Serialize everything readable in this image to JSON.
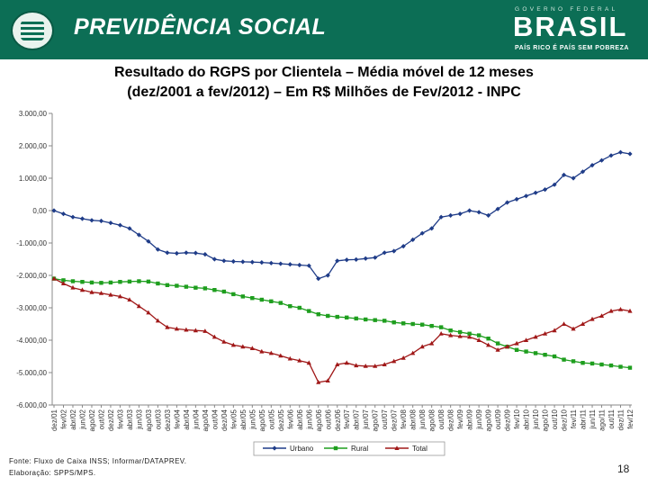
{
  "header": {
    "brand": "PREVIDÊNCIA SOCIAL",
    "gov_top": "GOVERNO FEDERAL",
    "gov_name": "BRASIL",
    "gov_tagline": "PAÍS RICO É PAÍS SEM POBREZA"
  },
  "title_line1": "Resultado do RGPS por Clientela – Média móvel de 12 meses",
  "title_line2": "(dez/2001 a fev/2012) – Em R$ Milhões de Fev/2012 - INPC",
  "footer": {
    "source": "Fonte: Fluxo de Caixa INSS; Informar/DATAPREV.",
    "prepared": "Elaboração: SPPS/MPS."
  },
  "page_number": "18",
  "colors": {
    "banner": "#0c6e55",
    "urbano": "#1f3c88",
    "rural": "#1e9e1e",
    "total": "#a01818"
  },
  "chart_data": {
    "type": "line",
    "ylim": [
      -6000,
      3000
    ],
    "yticks": [
      "3.000,00",
      "2.000,00",
      "1.000,00",
      "0,00",
      "-1.000,00",
      "-2.000,00",
      "-3.000,00",
      "-4.000,00",
      "-5.000,00",
      "-6.000,00"
    ],
    "x_labels": [
      "dez/01",
      "fev/02",
      "abr/02",
      "jun/02",
      "ago/02",
      "out/02",
      "dez/02",
      "fev/03",
      "abr/03",
      "jun/03",
      "ago/03",
      "out/03",
      "dez/03",
      "fev/04",
      "abr/04",
      "jun/04",
      "ago/04",
      "out/04",
      "dez/04",
      "fev/05",
      "abr/05",
      "jun/05",
      "ago/05",
      "out/05",
      "dez/05",
      "fev/06",
      "abr/06",
      "jun/06",
      "ago/06",
      "out/06",
      "dez/06",
      "fev/07",
      "abr/07",
      "jun/07",
      "ago/07",
      "out/07",
      "dez/07",
      "fev/08",
      "abr/08",
      "jun/08",
      "ago/08",
      "out/08",
      "dez/08",
      "fev/09",
      "abr/09",
      "jun/09",
      "ago/09",
      "out/09",
      "dez/09",
      "fev/10",
      "abr/10",
      "jun/10",
      "ago/10",
      "out/10",
      "dez/10",
      "fev/11",
      "abr/11",
      "jun/11",
      "ago/11",
      "out/11",
      "dez/11",
      "fev/12"
    ],
    "legend_position": "bottom",
    "series": [
      {
        "name": "Urbano",
        "marker": "diamond",
        "values": [
          0,
          -100,
          -200,
          -250,
          -300,
          -320,
          -380,
          -450,
          -550,
          -750,
          -950,
          -1200,
          -1300,
          -1320,
          -1300,
          -1310,
          -1350,
          -1500,
          -1550,
          -1570,
          -1580,
          -1590,
          -1600,
          -1620,
          -1640,
          -1660,
          -1680,
          -1700,
          -2100,
          -2000,
          -1550,
          -1520,
          -1510,
          -1480,
          -1450,
          -1300,
          -1250,
          -1100,
          -900,
          -700,
          -550,
          -200,
          -150,
          -100,
          0,
          -50,
          -150,
          50,
          250,
          350,
          450,
          550,
          650,
          800,
          1100,
          1000,
          1200,
          1400,
          1550,
          1700,
          1800,
          1750
        ]
      },
      {
        "name": "Rural",
        "marker": "square",
        "values": [
          -2100,
          -2150,
          -2180,
          -2200,
          -2220,
          -2230,
          -2220,
          -2200,
          -2190,
          -2180,
          -2190,
          -2250,
          -2300,
          -2320,
          -2350,
          -2380,
          -2400,
          -2450,
          -2500,
          -2580,
          -2650,
          -2700,
          -2750,
          -2800,
          -2850,
          -2950,
          -3000,
          -3100,
          -3200,
          -3250,
          -3280,
          -3300,
          -3330,
          -3360,
          -3380,
          -3400,
          -3450,
          -3480,
          -3500,
          -3520,
          -3560,
          -3600,
          -3700,
          -3750,
          -3800,
          -3850,
          -3950,
          -4100,
          -4200,
          -4300,
          -4350,
          -4400,
          -4450,
          -4500,
          -4600,
          -4650,
          -4700,
          -4720,
          -4750,
          -4780,
          -4820,
          -4850
        ]
      },
      {
        "name": "Total",
        "marker": "triangle",
        "values": [
          -2100,
          -2250,
          -2380,
          -2450,
          -2520,
          -2550,
          -2600,
          -2650,
          -2750,
          -2950,
          -3150,
          -3400,
          -3600,
          -3650,
          -3680,
          -3700,
          -3720,
          -3900,
          -4050,
          -4150,
          -4200,
          -4250,
          -4350,
          -4400,
          -4480,
          -4570,
          -4630,
          -4700,
          -5300,
          -5250,
          -4750,
          -4700,
          -4780,
          -4800,
          -4800,
          -4750,
          -4650,
          -4550,
          -4400,
          -4200,
          -4100,
          -3800,
          -3850,
          -3880,
          -3900,
          -4000,
          -4150,
          -4300,
          -4200,
          -4100,
          -4000,
          -3900,
          -3800,
          -3700,
          -3500,
          -3650,
          -3500,
          -3350,
          -3250,
          -3100,
          -3050,
          -3100
        ]
      }
    ]
  }
}
